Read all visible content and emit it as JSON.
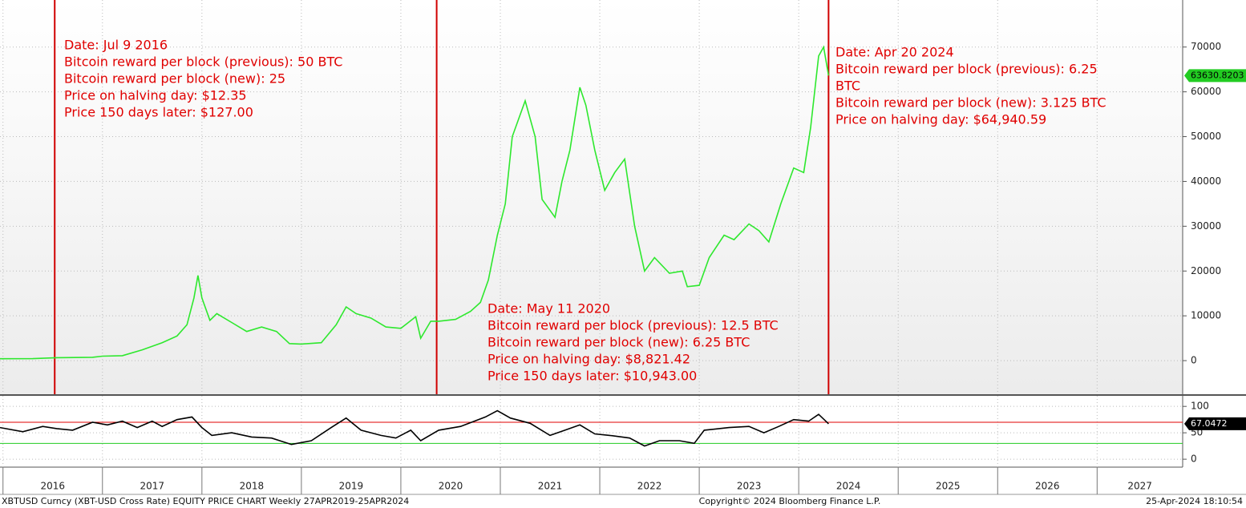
{
  "chart_data": [
    {
      "type": "line",
      "color": "#2ee82e",
      "xlim": [
        2015.97,
        2027.86
      ],
      "ylim": [
        -7500,
        80500
      ],
      "yticks": [
        0,
        10000,
        20000,
        30000,
        40000,
        50000,
        60000,
        70000
      ],
      "grid": true,
      "x": [
        2015.97,
        2016.3,
        2016.54,
        2016.9,
        2017.0,
        2017.2,
        2017.4,
        2017.6,
        2017.75,
        2017.85,
        2017.92,
        2017.96,
        2018.0,
        2018.08,
        2018.15,
        2018.3,
        2018.45,
        2018.6,
        2018.75,
        2018.88,
        2019.0,
        2019.2,
        2019.35,
        2019.45,
        2019.55,
        2019.7,
        2019.85,
        2020.0,
        2020.15,
        2020.2,
        2020.3,
        2020.38,
        2020.55,
        2020.7,
        2020.8,
        2020.88,
        2020.97,
        2021.05,
        2021.12,
        2021.25,
        2021.35,
        2021.42,
        2021.55,
        2021.62,
        2021.7,
        2021.8,
        2021.86,
        2021.95,
        2022.05,
        2022.15,
        2022.25,
        2022.35,
        2022.45,
        2022.55,
        2022.7,
        2022.83,
        2022.88,
        2023.0,
        2023.1,
        2023.25,
        2023.35,
        2023.5,
        2023.6,
        2023.7,
        2023.82,
        2023.95,
        2024.05,
        2024.12,
        2024.2,
        2024.25,
        2024.3
      ],
      "values": [
        430,
        450,
        650,
        750,
        1000,
        1100,
        2400,
        4000,
        5500,
        8000,
        14000,
        19000,
        14000,
        9000,
        10500,
        8500,
        6500,
        7500,
        6500,
        3800,
        3700,
        4000,
        8000,
        12000,
        10500,
        9500,
        7500,
        7200,
        9800,
        5000,
        8800,
        8800,
        9200,
        11000,
        13000,
        18000,
        28000,
        35000,
        50000,
        58000,
        50000,
        36000,
        32000,
        40000,
        47000,
        61000,
        57000,
        47000,
        38000,
        42000,
        45000,
        30000,
        20000,
        23000,
        19500,
        20000,
        16500,
        16800,
        23000,
        28000,
        27000,
        30500,
        29000,
        26500,
        35000,
        43000,
        42000,
        52000,
        68000,
        70000,
        63630.8203
      ],
      "vlines": [
        2016.52,
        2020.36,
        2024.3
      ],
      "vline_color": "#d00000",
      "annotations": [
        [
          "Date: Jul 9 2016",
          "Bitcoin reward per block (previous): 50 BTC",
          "Bitcoin reward per block (new): 25",
          "Price on halving day: $12.35",
          "Price 150 days later: $127.00"
        ],
        [
          "Date: May 11 2020",
          "Bitcoin reward per block (previous): 12.5 BTC",
          "Bitcoin reward per block (new): 6.25 BTC",
          "Price on halving day: $8,821.42",
          "Price 150 days later: $10,943.00"
        ],
        [
          "Date: Apr 20 2024",
          "Bitcoin reward per block (previous): 6.25",
          "BTC",
          "Bitcoin reward per block (new): 3.125 BTC",
          "Price on halving day: $64,940.59"
        ]
      ]
    },
    {
      "type": "line",
      "color": "#000000",
      "xlim": [
        2015.97,
        2027.86
      ],
      "ylim": [
        -15,
        120
      ],
      "yticks": [
        0,
        50,
        100
      ],
      "xticks": [
        2016,
        2017,
        2018,
        2019,
        2020,
        2021,
        2022,
        2023,
        2024,
        2025,
        2026,
        2027
      ],
      "hlines": [
        {
          "value": 70,
          "color": "#e00000"
        },
        {
          "value": 30,
          "color": "#22cc22"
        }
      ],
      "x": [
        2015.97,
        2016.2,
        2016.4,
        2016.54,
        2016.7,
        2016.9,
        2017.05,
        2017.2,
        2017.35,
        2017.5,
        2017.6,
        2017.75,
        2017.9,
        2018.0,
        2018.1,
        2018.3,
        2018.5,
        2018.7,
        2018.9,
        2019.1,
        2019.3,
        2019.45,
        2019.6,
        2019.8,
        2019.95,
        2020.1,
        2020.2,
        2020.38,
        2020.6,
        2020.85,
        2020.97,
        2021.1,
        2021.3,
        2021.5,
        2021.65,
        2021.8,
        2021.95,
        2022.1,
        2022.3,
        2022.45,
        2022.6,
        2022.8,
        2022.95,
        2023.05,
        2023.3,
        2023.5,
        2023.65,
        2023.8,
        2023.95,
        2024.1,
        2024.2,
        2024.3
      ],
      "values": [
        60,
        52,
        62,
        58,
        55,
        70,
        65,
        72,
        60,
        72,
        62,
        75,
        80,
        60,
        45,
        50,
        42,
        40,
        28,
        35,
        60,
        78,
        55,
        45,
        40,
        55,
        35,
        55,
        62,
        80,
        92,
        78,
        68,
        45,
        55,
        65,
        48,
        45,
        40,
        25,
        35,
        35,
        30,
        55,
        60,
        62,
        50,
        62,
        75,
        72,
        85,
        67.0472
      ]
    }
  ],
  "footer": {
    "left": "XBTUSD Curncy (XBT-USD Cross Rate) EQUITY PRICE CHART  Weekly 27APR2019-25APR2024",
    "center": "Copyright© 2024 Bloomberg Finance L.P.",
    "right": "25-Apr-2024 18:10:54"
  }
}
